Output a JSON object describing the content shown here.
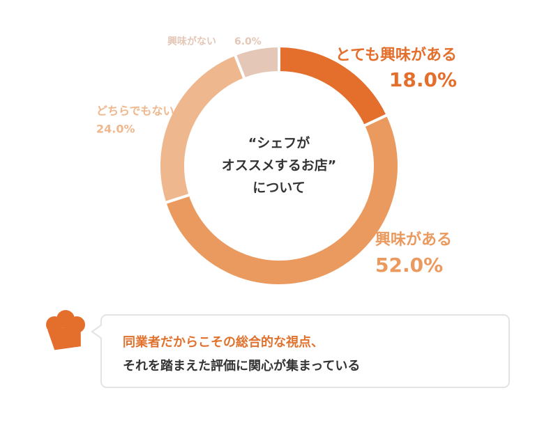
{
  "chart_data": {
    "type": "donut",
    "center_text": [
      "“シェフが",
      "オススメするお店”",
      "について"
    ],
    "categories": [
      "とても興味がある",
      "興味がある",
      "どちらでもない",
      "興味がない"
    ],
    "values": [
      18.0,
      52.0,
      24.0,
      6.0
    ],
    "value_labels": [
      "18.0%",
      "52.0%",
      "24.0%",
      "6.0%"
    ],
    "colors": [
      "#e46f2d",
      "#eb9a5f",
      "#efb78d",
      "#e4c7b7"
    ]
  },
  "note": {
    "lines": [
      "同業者だからこその総合的な視点、",
      "それを踏まえた評価に関心が集まっている"
    ]
  }
}
